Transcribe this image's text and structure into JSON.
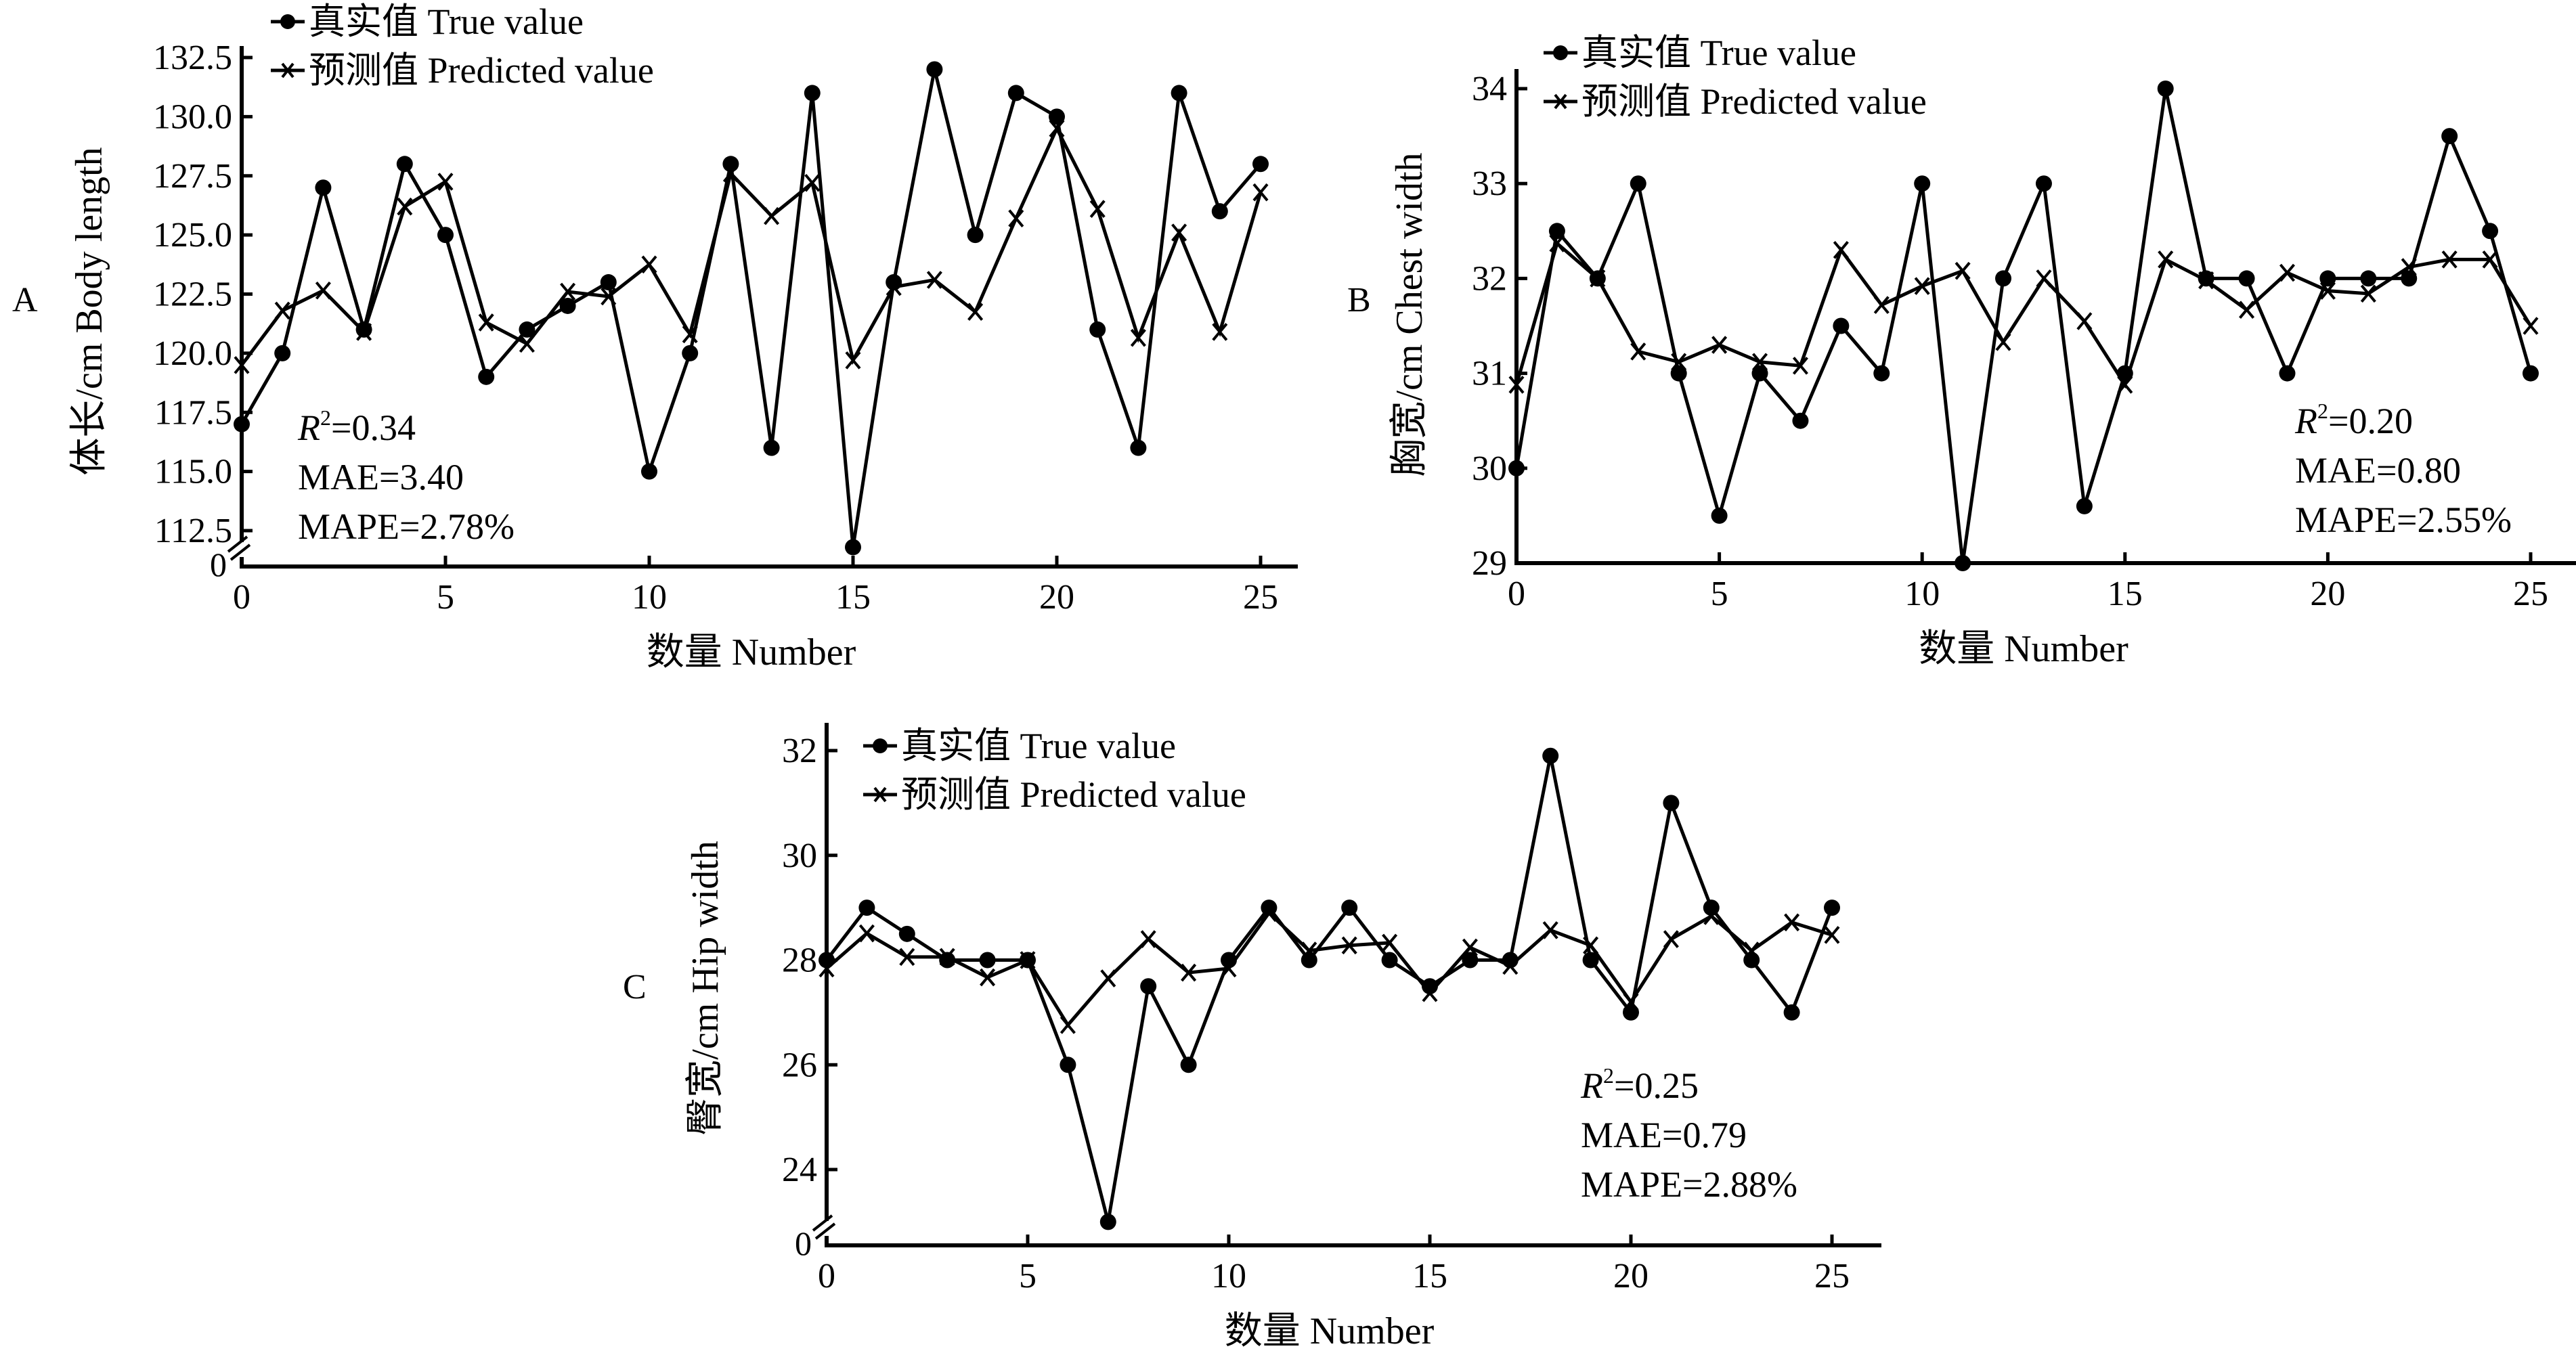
{
  "figure": {
    "legend_true": "真实值 True value",
    "legend_pred": "预测值 Predicted value"
  },
  "chart_data": [
    {
      "id": "A",
      "panel_label": "A",
      "type": "line",
      "title": "",
      "xlabel": "数量 Number",
      "ylabel": "体长/cm Body length",
      "x": [
        0,
        1,
        2,
        3,
        4,
        5,
        6,
        7,
        8,
        9,
        10,
        11,
        12,
        13,
        14,
        15,
        16,
        17,
        18,
        19,
        20,
        21,
        22,
        23,
        24,
        25
      ],
      "xlim": [
        0,
        26
      ],
      "xticks": [
        0,
        5,
        10,
        15,
        20,
        25
      ],
      "xtick_labels": [
        "0",
        "5",
        "10",
        "15",
        "20",
        "25"
      ],
      "ylim": [
        111.3,
        133.2
      ],
      "yticks": [
        112.5,
        115.0,
        117.5,
        120.0,
        122.5,
        125.0,
        127.5,
        130.0,
        132.5
      ],
      "ytick_labels": [
        "112.5",
        "115.0",
        "117.5",
        "120.0",
        "122.5",
        "125.0",
        "127.5",
        "130.0",
        "132.5"
      ],
      "y_break": true,
      "y_zero_label": "0",
      "legend_position": "top-left",
      "grid": false,
      "series": [
        {
          "name": "真实值 True value",
          "marker": "circle",
          "values": [
            117,
            120,
            127,
            121,
            128,
            125,
            119,
            121,
            122,
            123,
            115,
            120,
            128,
            116,
            131,
            111.8,
            123,
            132,
            125,
            131,
            130,
            121,
            116,
            131,
            126,
            128
          ]
        },
        {
          "name": "预测值 Predicted value",
          "marker": "x",
          "values": [
            119.5,
            121.8,
            122.65,
            120.9,
            126.2,
            127.25,
            121.3,
            120.4,
            122.6,
            122.4,
            123.75,
            120.8,
            127.6,
            125.8,
            127.2,
            119.7,
            122.8,
            123.1,
            121.75,
            125.7,
            129.5,
            126.1,
            120.65,
            125.1,
            120.9,
            126.8
          ]
        }
      ],
      "annotations": {
        "r2_label": "R",
        "r2_sup": "2",
        "r2_value": "=0.34",
        "mae": "MAE=3.40",
        "mape": "MAPE=2.78%"
      },
      "annotation_position": "bottom-left"
    },
    {
      "id": "B",
      "panel_label": "B",
      "type": "line",
      "title": "",
      "xlabel": "数量 Number",
      "ylabel": "胸宽/cm Chest width",
      "x": [
        0,
        1,
        2,
        3,
        4,
        5,
        6,
        7,
        8,
        9,
        10,
        11,
        12,
        13,
        14,
        15,
        16,
        17,
        18,
        19,
        20,
        21,
        22,
        23,
        24,
        25
      ],
      "xlim": [
        0,
        26
      ],
      "xticks": [
        0,
        5,
        10,
        15,
        20,
        25
      ],
      "xtick_labels": [
        "0",
        "5",
        "10",
        "15",
        "20",
        "25"
      ],
      "ylim": [
        29,
        34.3
      ],
      "yticks": [
        29,
        30,
        31,
        32,
        33,
        34
      ],
      "ytick_labels": [
        "29",
        "30",
        "31",
        "32",
        "33",
        "34"
      ],
      "y_break": false,
      "legend_position": "top-left",
      "grid": false,
      "series": [
        {
          "name": "真实值 True value",
          "marker": "circle",
          "values": [
            30,
            32.5,
            32,
            33,
            31,
            29.5,
            31,
            30.5,
            31.5,
            31,
            33,
            29,
            32,
            33,
            29.6,
            31,
            34,
            32,
            32,
            31,
            32,
            32,
            32,
            33.5,
            32.5,
            31
          ]
        },
        {
          "name": "预测值 Predicted value",
          "marker": "x",
          "values": [
            30.88,
            32.37,
            32.0,
            31.23,
            31.12,
            31.3,
            31.12,
            31.08,
            32.3,
            31.72,
            31.92,
            32.08,
            31.33,
            32.0,
            31.55,
            30.88,
            32.2,
            31.98,
            31.67,
            32.06,
            31.87,
            31.84,
            32.12,
            32.2,
            32.2,
            31.5
          ]
        }
      ],
      "annotations": {
        "r2_label": "R",
        "r2_sup": "2",
        "r2_value": "=0.20",
        "mae": "MAE=0.80",
        "mape": "MAPE=2.55%"
      },
      "annotation_position": "bottom-right"
    },
    {
      "id": "C",
      "panel_label": "C",
      "type": "line",
      "title": "",
      "xlabel": "数量 Number",
      "ylabel": "臀宽/cm Hip width",
      "x": [
        0,
        1,
        2,
        3,
        4,
        5,
        6,
        7,
        8,
        9,
        10,
        11,
        12,
        13,
        14,
        15,
        16,
        17,
        18,
        19,
        20,
        21,
        22,
        23,
        24,
        25
      ],
      "xlim": [
        0,
        26
      ],
      "xticks": [
        0,
        5,
        10,
        15,
        20,
        25
      ],
      "xtick_labels": [
        "0",
        "5",
        "10",
        "15",
        "20",
        "25"
      ],
      "ylim": [
        22.6,
        32.5
      ],
      "yticks": [
        24,
        26,
        28,
        30,
        32
      ],
      "ytick_labels": [
        "24",
        "26",
        "28",
        "30",
        "32"
      ],
      "y_break": true,
      "y_zero_label": "0",
      "legend_position": "top-left",
      "grid": false,
      "series": [
        {
          "name": "真实值 True value",
          "marker": "circle",
          "values": [
            28,
            29,
            28.5,
            28,
            28,
            28,
            26,
            23,
            27.5,
            26,
            28,
            29,
            28,
            29,
            28,
            27.5,
            28,
            28,
            31.9,
            28,
            27,
            31,
            29,
            28,
            27,
            29
          ]
        },
        {
          "name": "预测值 Predicted value",
          "marker": "x",
          "values": [
            27.84,
            28.51,
            28.06,
            28.06,
            27.67,
            28.0,
            26.76,
            27.65,
            28.4,
            27.76,
            27.84,
            28.9,
            28.18,
            28.28,
            28.33,
            27.37,
            28.24,
            27.89,
            28.57,
            28.28,
            27.2,
            28.4,
            28.84,
            28.18,
            28.72,
            28.48
          ]
        }
      ],
      "annotations": {
        "r2_label": "R",
        "r2_sup": "2",
        "r2_value": "=0.25",
        "mae": "MAE=0.79",
        "mape": "MAPE=2.88%"
      },
      "annotation_position": "bottom-right"
    }
  ]
}
